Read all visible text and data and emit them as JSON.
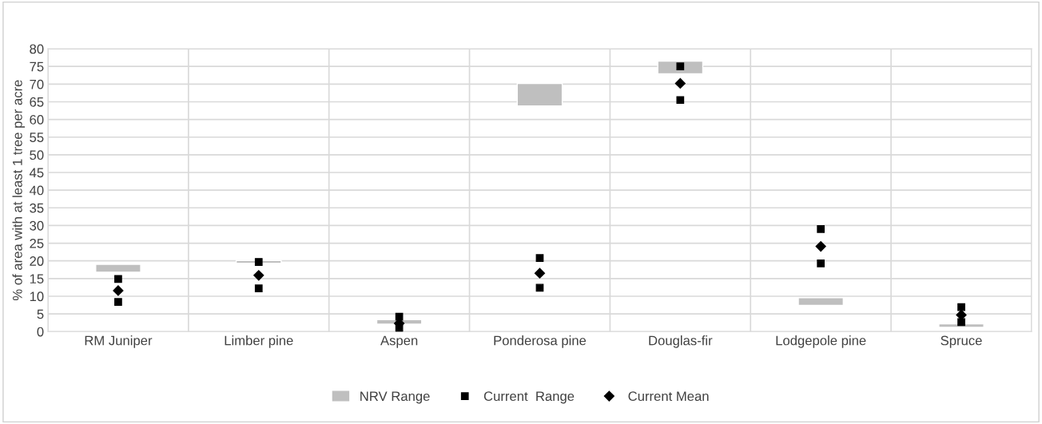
{
  "chart_data": {
    "type": "bar",
    "ylabel": "% of area with at least 1 tree per acre",
    "categories": [
      "RM Juniper",
      "Limber pine",
      "Aspen",
      "Ponderosa pine",
      "Douglas-fir",
      "Lodgepole pine",
      "Spruce"
    ],
    "series": [
      {
        "name": "NRV Range",
        "color": "#bfbfbf",
        "base": [
          16.8,
          19.3,
          2.1,
          63.8,
          72.9,
          7.4,
          1.2
        ],
        "values": [
          2.2,
          0.8,
          1.3,
          6.4,
          3.6,
          2.2,
          1.0
        ]
      },
      {
        "name": "Current  Range",
        "type": "scatter",
        "marker": "square",
        "color": "#000000",
        "values": [
          14.9,
          19.7,
          4.2,
          20.8,
          75.0,
          29.0,
          6.9
        ]
      },
      {
        "type": "scatter",
        "marker": "square",
        "color": "#000000",
        "values": [
          8.4,
          12.2,
          0.8,
          12.4,
          65.5,
          19.3,
          2.7
        ]
      },
      {
        "name": "Current Mean",
        "type": "scatter",
        "marker": "diamond",
        "color": "#000000",
        "values": [
          11.6,
          15.9,
          2.3,
          16.5,
          70.2,
          24.1,
          4.7
        ]
      }
    ],
    "ylim": [
      0,
      80
    ],
    "yticks": [
      0,
      5,
      10,
      15,
      20,
      25,
      30,
      35,
      40,
      45,
      50,
      55,
      60,
      65,
      70,
      75,
      80
    ],
    "grid": true,
    "legend": "bottom"
  }
}
